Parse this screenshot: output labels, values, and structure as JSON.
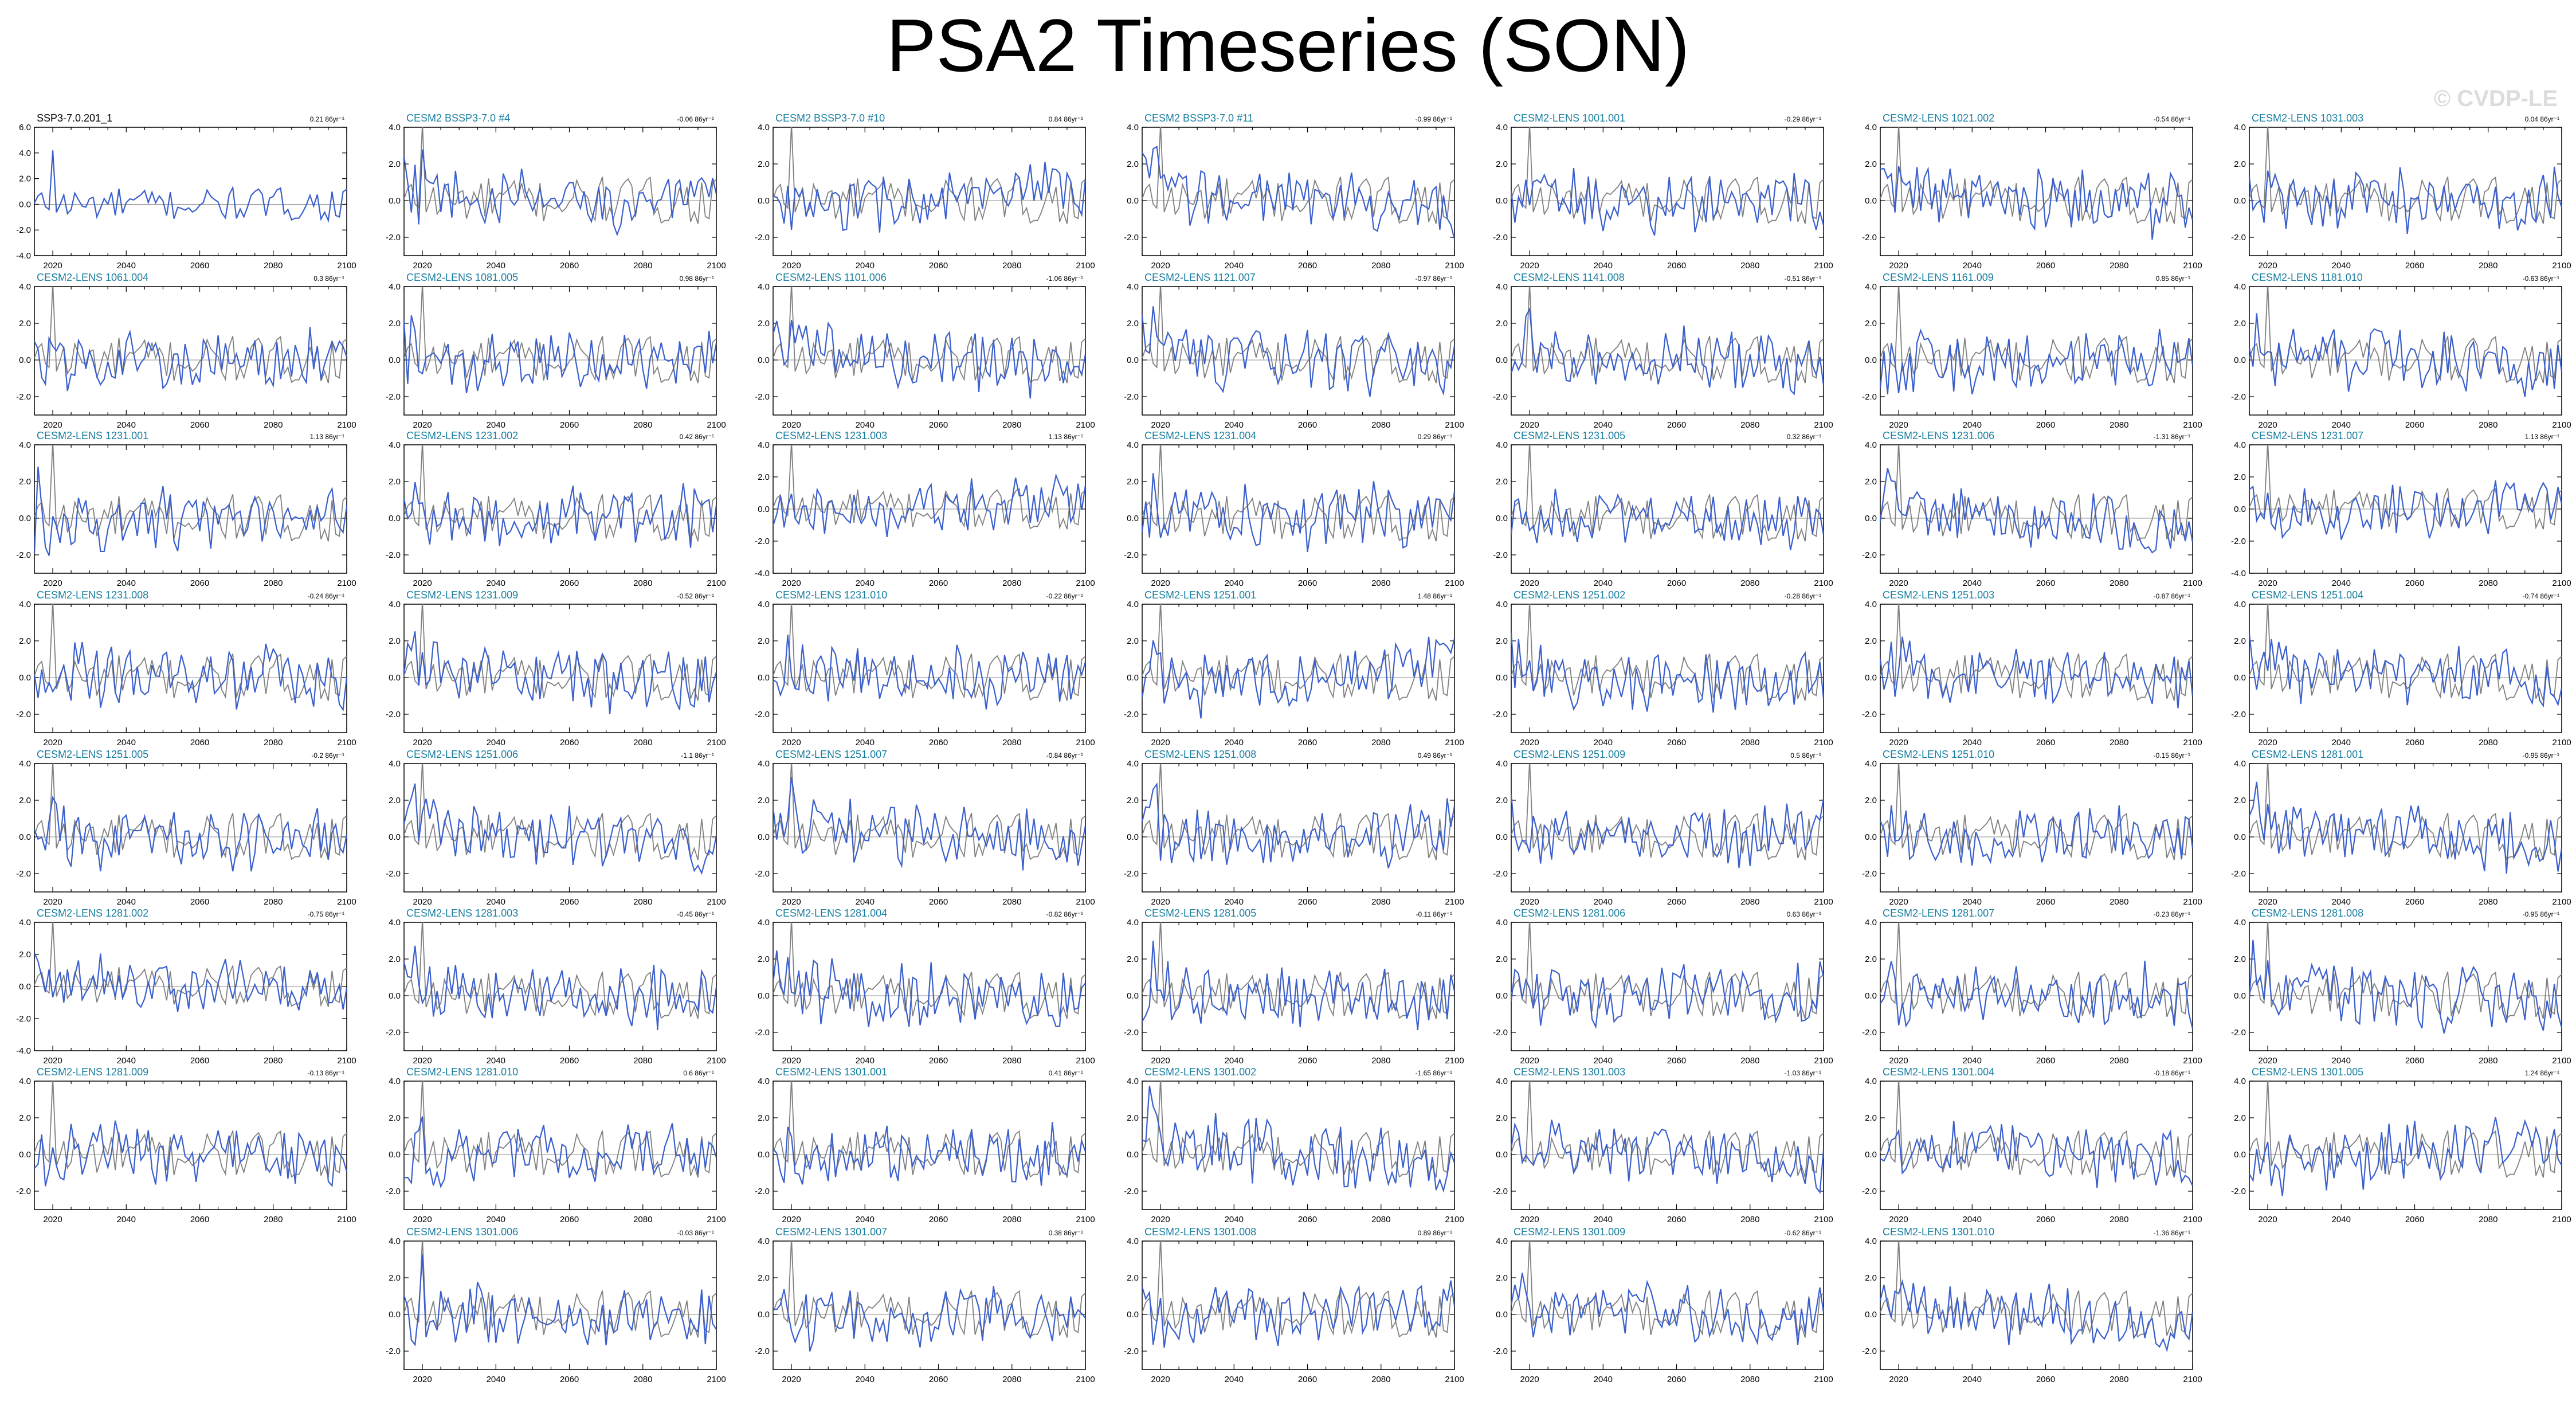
{
  "title": "PSA2 Timeseries (SON)",
  "watermark": "© CVDP-LE",
  "colors": {
    "model": "#3a5fcd",
    "observed": "#808080",
    "obs_label": "#000000",
    "model_label": "#1a7fa0",
    "axes": "#000000",
    "background": "#ffffff"
  },
  "chart_data": {
    "type": "line",
    "x_ticks": [
      2020,
      2040,
      2060,
      2080,
      2100
    ],
    "xlim": [
      2015,
      2100
    ],
    "trend_units": "/86yr",
    "series": [
      {
        "name": "observed",
        "color": "#808080"
      },
      {
        "name": "model",
        "color": "#3a5fcd"
      }
    ],
    "panels": [
      {
        "label": "SSP3-7.0.201_1",
        "trend": "0.21 86yr⁻¹",
        "is_obs": true,
        "y_ticks": [
          "6.0",
          "4.0",
          "2.0",
          "0.0",
          "-2.0",
          "-4.0"
        ]
      },
      {
        "label": "CESM2 BSSP3-7.0 #4",
        "trend": "-0.06 86yr⁻¹",
        "y_ticks": [
          "4.0",
          "2.0",
          "0.0",
          "-2.0"
        ]
      },
      {
        "label": "CESM2 BSSP3-7.0 #10",
        "trend": "0.84 86yr⁻¹",
        "y_ticks": [
          "4.0",
          "2.0",
          "0.0",
          "-2.0"
        ]
      },
      {
        "label": "CESM2 BSSP3-7.0 #11",
        "trend": "-0.99 86yr⁻¹",
        "y_ticks": [
          "4.0",
          "2.0",
          "0.0",
          "-2.0"
        ]
      },
      {
        "label": "CESM2-LENS 1001.001",
        "trend": "-0.29 86yr⁻¹",
        "y_ticks": [
          "4.0",
          "2.0",
          "0.0",
          "-2.0"
        ]
      },
      {
        "label": "CESM2-LENS 1021.002",
        "trend": "-0.54 86yr⁻¹",
        "y_ticks": [
          "4.0",
          "2.0",
          "0.0",
          "-2.0"
        ]
      },
      {
        "label": "CESM2-LENS 1031.003",
        "trend": "0.04 86yr⁻¹",
        "y_ticks": [
          "4.0",
          "2.0",
          "0.0",
          "-2.0"
        ]
      },
      {
        "label": "CESM2-LENS 1061.004",
        "trend": "0.3 86yr⁻¹",
        "y_ticks": [
          "4.0",
          "2.0",
          "0.0",
          "-2.0"
        ]
      },
      {
        "label": "CESM2-LENS 1081.005",
        "trend": "0.98 86yr⁻¹",
        "y_ticks": [
          "4.0",
          "2.0",
          "0.0",
          "-2.0"
        ]
      },
      {
        "label": "CESM2-LENS 1101.006",
        "trend": "-1.06 86yr⁻¹",
        "y_ticks": [
          "4.0",
          "2.0",
          "0.0",
          "-2.0"
        ]
      },
      {
        "label": "CESM2-LENS 1121.007",
        "trend": "-0.97 86yr⁻¹",
        "y_ticks": [
          "4.0",
          "2.0",
          "0.0",
          "-2.0"
        ]
      },
      {
        "label": "CESM2-LENS 1141.008",
        "trend": "-0.51 86yr⁻¹",
        "y_ticks": [
          "4.0",
          "2.0",
          "0.0",
          "-2.0"
        ]
      },
      {
        "label": "CESM2-LENS 1161.009",
        "trend": "0.85 86yr⁻¹",
        "y_ticks": [
          "4.0",
          "2.0",
          "0.0",
          "-2.0"
        ]
      },
      {
        "label": "CESM2-LENS 1181.010",
        "trend": "-0.63 86yr⁻¹",
        "y_ticks": [
          "4.0",
          "2.0",
          "0.0",
          "-2.0"
        ]
      },
      {
        "label": "CESM2-LENS 1231.001",
        "trend": "1.13 86yr⁻¹",
        "y_ticks": [
          "4.0",
          "2.0",
          "0.0",
          "-2.0"
        ]
      },
      {
        "label": "CESM2-LENS 1231.002",
        "trend": "0.42 86yr⁻¹",
        "y_ticks": [
          "4.0",
          "2.0",
          "0.0",
          "-2.0"
        ]
      },
      {
        "label": "CESM2-LENS 1231.003",
        "trend": "1.13 86yr⁻¹",
        "y_ticks": [
          "4.0",
          "2.0",
          "0.0",
          "-2.0",
          "-4.0"
        ]
      },
      {
        "label": "CESM2-LENS 1231.004",
        "trend": "0.29 86yr⁻¹",
        "y_ticks": [
          "4.0",
          "2.0",
          "0.0",
          "-2.0"
        ]
      },
      {
        "label": "CESM2-LENS 1231.005",
        "trend": "0.32 86yr⁻¹",
        "y_ticks": [
          "4.0",
          "2.0",
          "0.0",
          "-2.0"
        ]
      },
      {
        "label": "CESM2-LENS 1231.006",
        "trend": "-1.31 86yr⁻¹",
        "y_ticks": [
          "4.0",
          "2.0",
          "0.0",
          "-2.0"
        ]
      },
      {
        "label": "CESM2-LENS 1231.007",
        "trend": "1.13 86yr⁻¹",
        "y_ticks": [
          "4.0",
          "2.0",
          "0.0",
          "-2.0",
          "-4.0"
        ]
      },
      {
        "label": "CESM2-LENS 1231.008",
        "trend": "-0.24 86yr⁻¹",
        "y_ticks": [
          "4.0",
          "2.0",
          "0.0",
          "-2.0"
        ]
      },
      {
        "label": "CESM2-LENS 1231.009",
        "trend": "-0.52 86yr⁻¹",
        "y_ticks": [
          "4.0",
          "2.0",
          "0.0",
          "-2.0"
        ]
      },
      {
        "label": "CESM2-LENS 1231.010",
        "trend": "-0.22 86yr⁻¹",
        "y_ticks": [
          "4.0",
          "2.0",
          "0.0",
          "-2.0"
        ]
      },
      {
        "label": "CESM2-LENS 1251.001",
        "trend": "1.48 86yr⁻¹",
        "y_ticks": [
          "4.0",
          "2.0",
          "0.0",
          "-2.0"
        ]
      },
      {
        "label": "CESM2-LENS 1251.002",
        "trend": "-0.28 86yr⁻¹",
        "y_ticks": [
          "4.0",
          "2.0",
          "0.0",
          "-2.0"
        ]
      },
      {
        "label": "CESM2-LENS 1251.003",
        "trend": "-0.87 86yr⁻¹",
        "y_ticks": [
          "4.0",
          "2.0",
          "0.0",
          "-2.0"
        ]
      },
      {
        "label": "CESM2-LENS 1251.004",
        "trend": "-0.74 86yr⁻¹",
        "y_ticks": [
          "4.0",
          "2.0",
          "0.0",
          "-2.0"
        ]
      },
      {
        "label": "CESM2-LENS 1251.005",
        "trend": "-0.2 86yr⁻¹",
        "y_ticks": [
          "4.0",
          "2.0",
          "0.0",
          "-2.0"
        ]
      },
      {
        "label": "CESM2-LENS 1251.006",
        "trend": "-1.1 86yr⁻¹",
        "y_ticks": [
          "4.0",
          "2.0",
          "0.0",
          "-2.0"
        ]
      },
      {
        "label": "CESM2-LENS 1251.007",
        "trend": "-0.84 86yr⁻¹",
        "y_ticks": [
          "4.0",
          "2.0",
          "0.0",
          "-2.0"
        ]
      },
      {
        "label": "CESM2-LENS 1251.008",
        "trend": "0.49 86yr⁻¹",
        "y_ticks": [
          "4.0",
          "2.0",
          "0.0",
          "-2.0"
        ]
      },
      {
        "label": "CESM2-LENS 1251.009",
        "trend": "0.5 86yr⁻¹",
        "y_ticks": [
          "4.0",
          "2.0",
          "0.0",
          "-2.0"
        ]
      },
      {
        "label": "CESM2-LENS 1251.010",
        "trend": "-0.15 86yr⁻¹",
        "y_ticks": [
          "4.0",
          "2.0",
          "0.0",
          "-2.0"
        ]
      },
      {
        "label": "CESM2-LENS 1281.001",
        "trend": "-0.95 86yr⁻¹",
        "y_ticks": [
          "4.0",
          "2.0",
          "0.0",
          "-2.0"
        ]
      },
      {
        "label": "CESM2-LENS 1281.002",
        "trend": "-0.75 86yr⁻¹",
        "y_ticks": [
          "4.0",
          "2.0",
          "0.0",
          "-2.0",
          "-4.0"
        ]
      },
      {
        "label": "CESM2-LENS 1281.003",
        "trend": "-0.45 86yr⁻¹",
        "y_ticks": [
          "4.0",
          "2.0",
          "0.0",
          "-2.0"
        ]
      },
      {
        "label": "CESM2-LENS 1281.004",
        "trend": "-0.82 86yr⁻¹",
        "y_ticks": [
          "4.0",
          "2.0",
          "0.0",
          "-2.0"
        ]
      },
      {
        "label": "CESM2-LENS 1281.005",
        "trend": "-0.11 86yr⁻¹",
        "y_ticks": [
          "4.0",
          "2.0",
          "0.0",
          "-2.0"
        ]
      },
      {
        "label": "CESM2-LENS 1281.006",
        "trend": "0.63 86yr⁻¹",
        "y_ticks": [
          "4.0",
          "2.0",
          "0.0",
          "-2.0"
        ]
      },
      {
        "label": "CESM2-LENS 1281.007",
        "trend": "-0.23 86yr⁻¹",
        "y_ticks": [
          "4.0",
          "2.0",
          "0.0",
          "-2.0"
        ]
      },
      {
        "label": "CESM2-LENS 1281.008",
        "trend": "-0.95 86yr⁻¹",
        "y_ticks": [
          "4.0",
          "2.0",
          "0.0",
          "-2.0"
        ]
      },
      {
        "label": "CESM2-LENS 1281.009",
        "trend": "-0.13 86yr⁻¹",
        "y_ticks": [
          "4.0",
          "2.0",
          "0.0",
          "-2.0"
        ]
      },
      {
        "label": "CESM2-LENS 1281.010",
        "trend": "0.6 86yr⁻¹",
        "y_ticks": [
          "4.0",
          "2.0",
          "0.0",
          "-2.0"
        ]
      },
      {
        "label": "CESM2-LENS 1301.001",
        "trend": "0.41 86yr⁻¹",
        "y_ticks": [
          "4.0",
          "2.0",
          "0.0",
          "-2.0"
        ]
      },
      {
        "label": "CESM2-LENS 1301.002",
        "trend": "-1.65 86yr⁻¹",
        "y_ticks": [
          "4.0",
          "2.0",
          "0.0",
          "-2.0"
        ]
      },
      {
        "label": "CESM2-LENS 1301.003",
        "trend": "-1.03 86yr⁻¹",
        "y_ticks": [
          "4.0",
          "2.0",
          "0.0",
          "-2.0"
        ]
      },
      {
        "label": "CESM2-LENS 1301.004",
        "trend": "-0.18 86yr⁻¹",
        "y_ticks": [
          "4.0",
          "2.0",
          "0.0",
          "-2.0"
        ]
      },
      {
        "label": "CESM2-LENS 1301.005",
        "trend": "1.24 86yr⁻¹",
        "y_ticks": [
          "4.0",
          "2.0",
          "0.0",
          "-2.0"
        ]
      },
      {
        "label": "CESM2-LENS 1301.006",
        "trend": "-0.03 86yr⁻¹",
        "y_ticks": [
          "4.0",
          "2.0",
          "0.0",
          "-2.0"
        ]
      },
      {
        "label": "CESM2-LENS 1301.007",
        "trend": "0.38 86yr⁻¹",
        "y_ticks": [
          "4.0",
          "2.0",
          "0.0",
          "-2.0"
        ]
      },
      {
        "label": "CESM2-LENS 1301.008",
        "trend": "0.89 86yr⁻¹",
        "y_ticks": [
          "4.0",
          "2.0",
          "0.0",
          "-2.0"
        ]
      },
      {
        "label": "CESM2-LENS 1301.009",
        "trend": "-0.62 86yr⁻¹",
        "y_ticks": [
          "4.0",
          "2.0",
          "0.0",
          "-2.0"
        ]
      },
      {
        "label": "CESM2-LENS 1301.010",
        "trend": "-1.36 86yr⁻¹",
        "y_ticks": [
          "4.0",
          "2.0",
          "0.0",
          "-2.0"
        ]
      }
    ]
  }
}
